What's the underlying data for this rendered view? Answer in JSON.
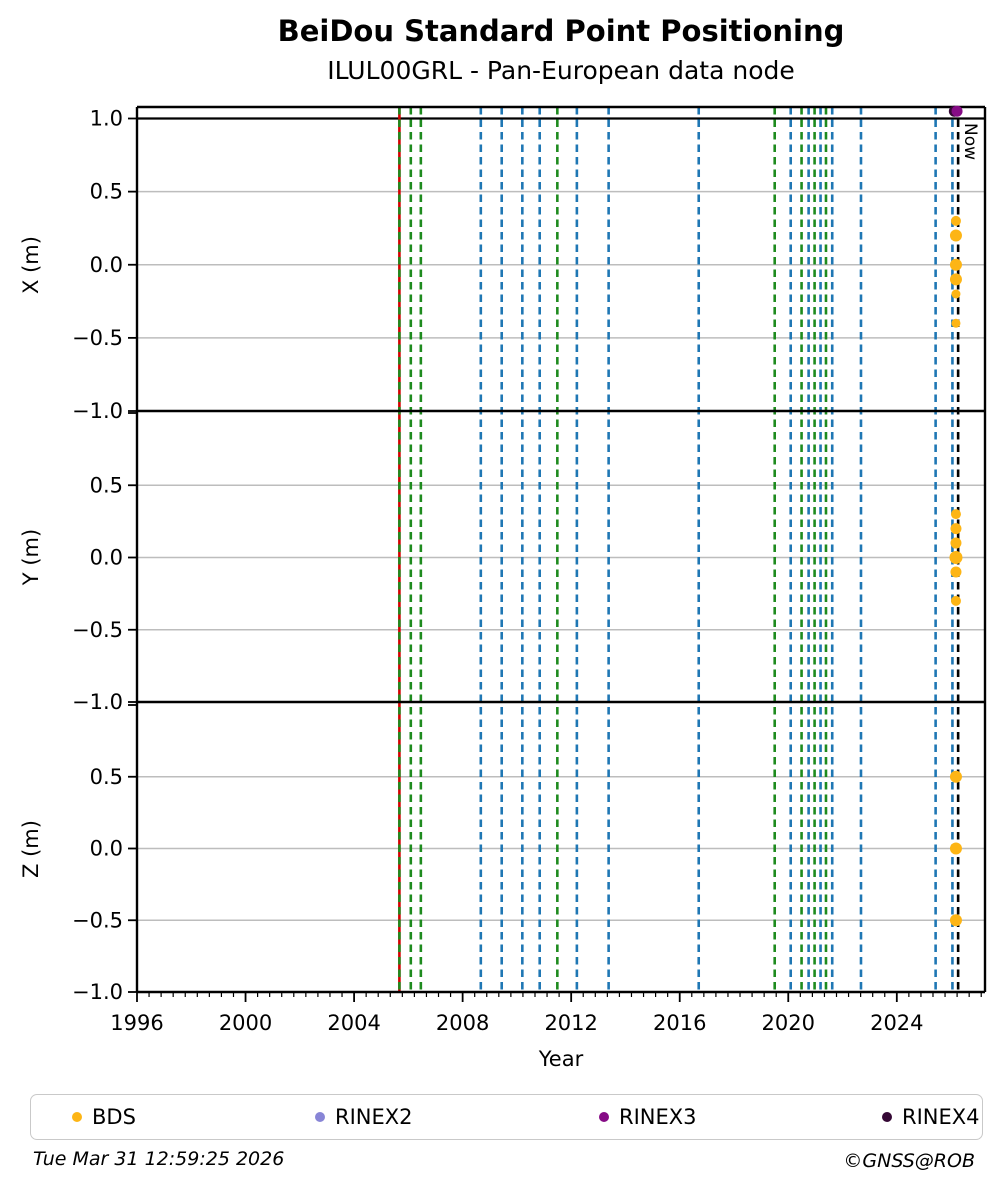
{
  "header": {
    "title": "BeiDou Standard Point Positioning",
    "subtitle": "ILUL00GRL - Pan-European data node"
  },
  "footer": {
    "timestamp": "Tue Mar 31 12:59:25 2026",
    "credit": "©GNSS@ROB"
  },
  "legend": {
    "items": [
      {
        "label": "BDS",
        "color": "#fdb515"
      },
      {
        "label": "RINEX2",
        "color": "#8885d6"
      },
      {
        "label": "RINEX3",
        "color": "#850b85"
      },
      {
        "label": "RINEX4",
        "color": "#350835"
      }
    ]
  },
  "chart_data": {
    "type": "scatter",
    "title": "BeiDou Standard Point Positioning",
    "subtitle": "ILUL00GRL - Pan-European data node",
    "xlabel": "Year",
    "x_range": [
      1996,
      2027.25
    ],
    "x_major_ticks": [
      1996,
      2000,
      2004,
      2008,
      2012,
      2016,
      2020,
      2024
    ],
    "x_minor_subdivisions": 9,
    "grid": "horizontal-gray",
    "legend_position": "bottom",
    "line_colors": {
      "blue": "#1f77b4",
      "green": "#1e8b1e",
      "red": "#d40000",
      "black": "#000000"
    },
    "series_colors": {
      "BDS": "#fdb515",
      "RINEX2": "#8885d6",
      "RINEX3": "#850b85",
      "RINEX4": "#350835"
    },
    "now_line": {
      "year": 2026.26,
      "label": "Now",
      "color": "black",
      "style": "dashed"
    },
    "event_lines": [
      {
        "year": 2005.67,
        "color": "red",
        "style": "solid"
      },
      {
        "year": 2005.67,
        "color": "green",
        "style": "dashed"
      },
      {
        "year": 2006.09,
        "color": "green",
        "style": "dashed"
      },
      {
        "year": 2006.46,
        "color": "green",
        "style": "dashed"
      },
      {
        "year": 2008.67,
        "color": "blue",
        "style": "dashed"
      },
      {
        "year": 2009.44,
        "color": "blue",
        "style": "dashed"
      },
      {
        "year": 2010.2,
        "color": "blue",
        "style": "dashed"
      },
      {
        "year": 2010.84,
        "color": "blue",
        "style": "dashed"
      },
      {
        "year": 2011.49,
        "color": "green",
        "style": "dashed"
      },
      {
        "year": 2012.21,
        "color": "blue",
        "style": "dashed"
      },
      {
        "year": 2013.38,
        "color": "blue",
        "style": "dashed"
      },
      {
        "year": 2016.7,
        "color": "blue",
        "style": "dashed"
      },
      {
        "year": 2019.5,
        "color": "green",
        "style": "dashed"
      },
      {
        "year": 2020.09,
        "color": "blue",
        "style": "dashed"
      },
      {
        "year": 2020.49,
        "color": "green",
        "style": "dashed"
      },
      {
        "year": 2020.75,
        "color": "blue",
        "style": "dashed"
      },
      {
        "year": 2020.97,
        "color": "green",
        "style": "dashed"
      },
      {
        "year": 2021.19,
        "color": "blue",
        "style": "dashed"
      },
      {
        "year": 2021.39,
        "color": "green",
        "style": "dashed"
      },
      {
        "year": 2021.62,
        "color": "blue",
        "style": "dashed"
      },
      {
        "year": 2022.68,
        "color": "blue",
        "style": "dashed"
      },
      {
        "year": 2025.43,
        "color": "blue",
        "style": "dashed"
      },
      {
        "year": 2026.05,
        "color": "blue",
        "style": "dashed"
      }
    ],
    "subplots": [
      {
        "ylabel": "X (m)",
        "ylim": [
          -1.0,
          1.0
        ],
        "yticks": [
          1.0,
          0.5,
          0.0,
          -0.5,
          -1.0
        ],
        "ytick_labels": [
          "1.0",
          "0.5",
          "0.0",
          "−0.5",
          "−1.0"
        ],
        "points": [
          {
            "x": 2026.18,
            "y": 0.3,
            "series": "BDS",
            "r": 5
          },
          {
            "x": 2026.18,
            "y": 0.2,
            "series": "BDS",
            "r": 6
          },
          {
            "x": 2026.18,
            "y": 0.0,
            "series": "BDS",
            "r": 6
          },
          {
            "x": 2026.18,
            "y": -0.1,
            "series": "BDS",
            "r": 6
          },
          {
            "x": 2026.18,
            "y": -0.2,
            "series": "BDS",
            "r": 4.5
          },
          {
            "x": 2026.18,
            "y": -0.4,
            "series": "BDS",
            "r": 4.5
          },
          {
            "x": 2026.12,
            "y": 1.05,
            "series": "RINEX4",
            "r": 5.5
          },
          {
            "x": 2026.22,
            "y": 1.05,
            "series": "RINEX3",
            "r": 5.5
          }
        ]
      },
      {
        "ylabel": "Y (m)",
        "ylim": [
          -1.0,
          1.0
        ],
        "yticks": [
          1.0,
          0.5,
          0.0,
          -0.5,
          -1.0
        ],
        "ytick_labels": [
          "",
          "0.5",
          "0.0",
          "−0.5",
          "−1.0"
        ],
        "points": [
          {
            "x": 2026.18,
            "y": 0.3,
            "series": "BDS",
            "r": 5
          },
          {
            "x": 2026.18,
            "y": 0.2,
            "series": "BDS",
            "r": 5.5
          },
          {
            "x": 2026.18,
            "y": 0.1,
            "series": "BDS",
            "r": 5.5
          },
          {
            "x": 2026.18,
            "y": 0.0,
            "series": "BDS",
            "r": 6.5
          },
          {
            "x": 2026.18,
            "y": -0.1,
            "series": "BDS",
            "r": 5.5
          },
          {
            "x": 2026.18,
            "y": -0.3,
            "series": "BDS",
            "r": 5
          }
        ]
      },
      {
        "ylabel": "Z (m)",
        "ylim": [
          -1.0,
          1.0
        ],
        "yticks": [
          1.0,
          0.5,
          0.0,
          -0.5,
          -1.0
        ],
        "ytick_labels": [
          "",
          "0.5",
          "0.0",
          "−0.5",
          "−1.0"
        ],
        "points": [
          {
            "x": 2026.18,
            "y": 0.5,
            "series": "BDS",
            "r": 6
          },
          {
            "x": 2026.18,
            "y": 0.0,
            "series": "BDS",
            "r": 6
          },
          {
            "x": 2026.18,
            "y": -0.5,
            "series": "BDS",
            "r": 6
          }
        ]
      }
    ]
  }
}
